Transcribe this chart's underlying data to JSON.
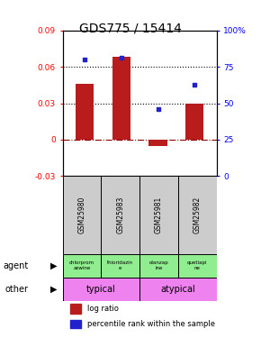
{
  "title": "GDS775 / 15414",
  "samples": [
    "GSM25980",
    "GSM25983",
    "GSM25981",
    "GSM25982"
  ],
  "log_ratios": [
    0.046,
    0.068,
    -0.005,
    0.03
  ],
  "percentile_ranks": [
    80,
    81,
    46,
    63
  ],
  "ylim_left": [
    -0.03,
    0.09
  ],
  "ylim_right": [
    0,
    100
  ],
  "yticks_left": [
    -0.03,
    0,
    0.03,
    0.06,
    0.09
  ],
  "yticks_right": [
    0,
    25,
    50,
    75,
    100
  ],
  "ytick_labels_left": [
    "-0.03",
    "0",
    "0.03",
    "0.06",
    "0.09"
  ],
  "ytick_labels_right": [
    "0",
    "25",
    "50",
    "75",
    "100%"
  ],
  "hlines": [
    0.06,
    0.03
  ],
  "bar_color": "#b81c1c",
  "dot_color": "#2222cc",
  "zero_line_color": "#8B0000",
  "agents": [
    "chlorprom\nazwine",
    "thioridazin\ne",
    "olanzap\nine",
    "quetiapi\nne"
  ],
  "agent_color": "#90ee90",
  "typical_color": "#ee82ee",
  "atypical_color": "#ee82ee",
  "typical_label": "typical",
  "atypical_label": "atypical",
  "legend_bar": "log ratio",
  "legend_dot": "percentile rank within the sample",
  "sample_box_color": "#cccccc",
  "title_fontsize": 10
}
